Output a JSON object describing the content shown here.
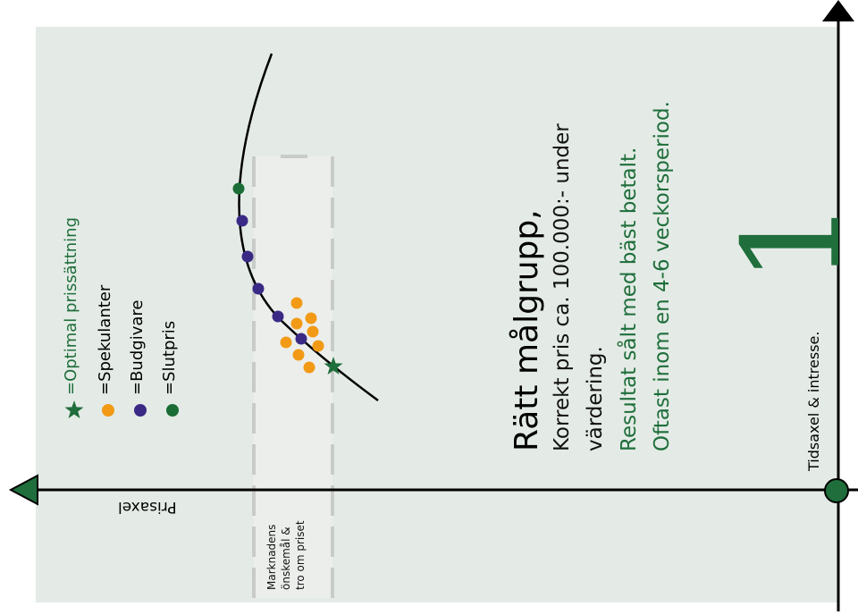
{
  "legend": [
    {
      "symbol": "star",
      "color": "#1f6e3b",
      "label": "=Optimal prissättning",
      "text_color": "#1f6e3b"
    },
    {
      "symbol": "dot",
      "color": "#f29a16",
      "label": "=Spekulanter",
      "text_color": "#000000"
    },
    {
      "symbol": "dot",
      "color": "#3a2a85",
      "label": "=Budgivare",
      "text_color": "#000000"
    },
    {
      "symbol": "dot",
      "color": "#1a6e35",
      "label": "=Slutpris",
      "text_color": "#000000"
    }
  ],
  "heading": "Rätt målgrupp,",
  "body_black": [
    "Korrekt pris ca. 100.000:- under",
    "värdering."
  ],
  "body_green": [
    "Resultat sålt med bäst betalt.",
    "Oftast inom en 4-6 veckorsperiod."
  ],
  "big_number": "1",
  "time_axis_label": "Tidsaxel & intresse.",
  "price_axis_label": "Prisaxel",
  "band_label": [
    "Marknadens",
    "önskemål &",
    "tro om priset"
  ],
  "colors": {
    "panel": "#e4ebe6",
    "band": "#eceeec",
    "band_border": "#c9cbc9",
    "accent_green": "#1f6e3b",
    "orange": "#f29a16",
    "purple": "#3a2a85",
    "slutpris_green": "#1a6e35"
  }
}
